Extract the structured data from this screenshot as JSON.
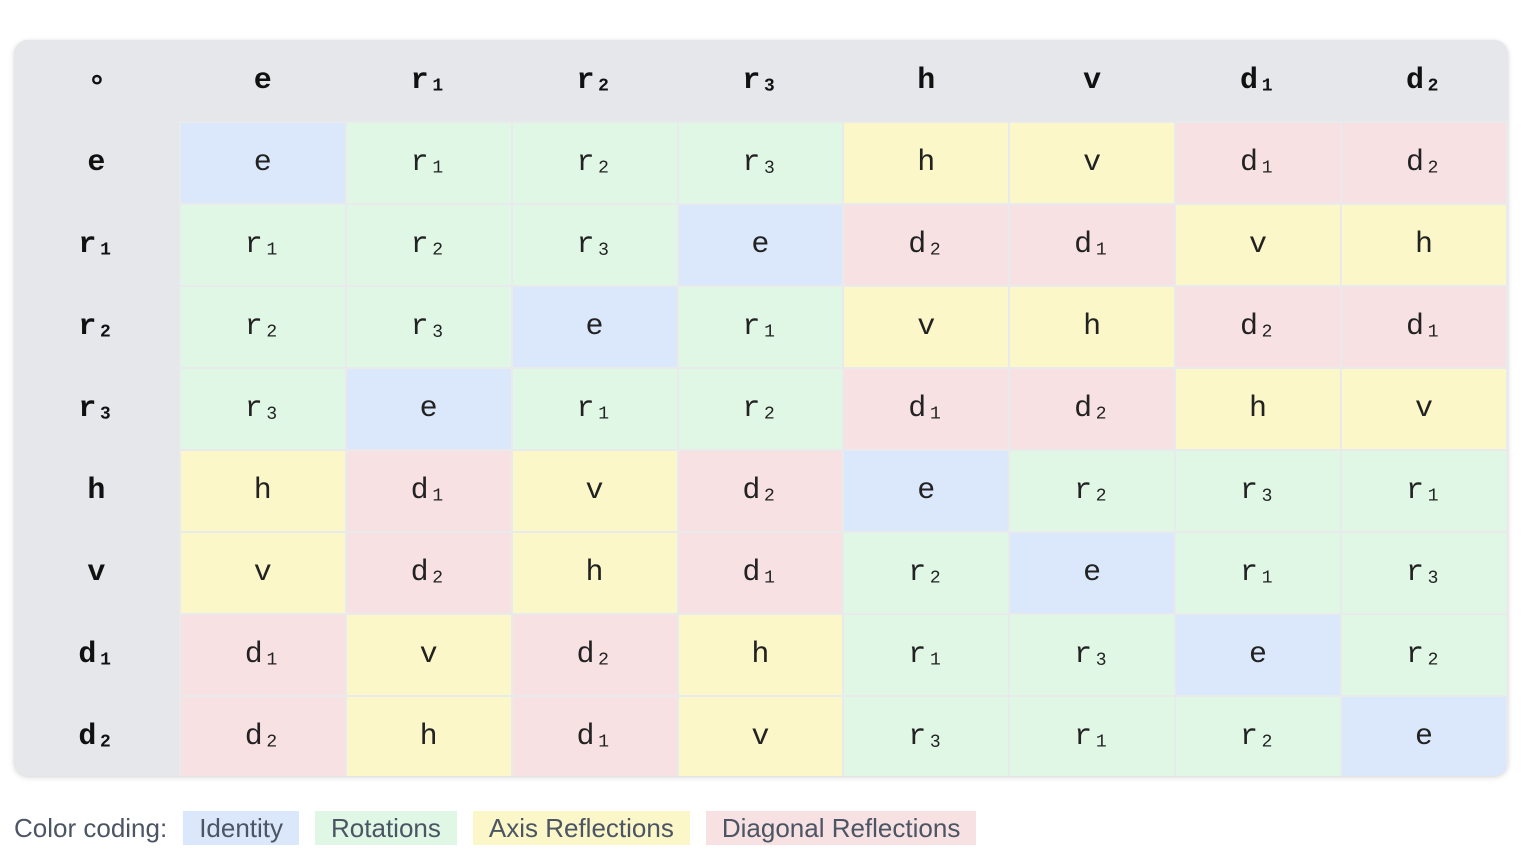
{
  "table": {
    "corner": "∘",
    "columns": [
      "e",
      "r₁",
      "r₂",
      "r₃",
      "h",
      "v",
      "d₁",
      "d₂"
    ],
    "rows": [
      {
        "label": "e",
        "cells": [
          "e",
          "r₁",
          "r₂",
          "r₃",
          "h",
          "v",
          "d₁",
          "d₂"
        ]
      },
      {
        "label": "r₁",
        "cells": [
          "r₁",
          "r₂",
          "r₃",
          "e",
          "d₂",
          "d₁",
          "v",
          "h"
        ]
      },
      {
        "label": "r₂",
        "cells": [
          "r₂",
          "r₃",
          "e",
          "r₁",
          "v",
          "h",
          "d₂",
          "d₁"
        ]
      },
      {
        "label": "r₃",
        "cells": [
          "r₃",
          "e",
          "r₁",
          "r₂",
          "d₁",
          "d₂",
          "h",
          "v"
        ]
      },
      {
        "label": "h",
        "cells": [
          "h",
          "d₁",
          "v",
          "d₂",
          "e",
          "r₂",
          "r₃",
          "r₁"
        ]
      },
      {
        "label": "v",
        "cells": [
          "v",
          "d₂",
          "h",
          "d₁",
          "r₂",
          "e",
          "r₁",
          "r₃"
        ]
      },
      {
        "label": "d₁",
        "cells": [
          "d₁",
          "v",
          "d₂",
          "h",
          "r₁",
          "r₃",
          "e",
          "r₂"
        ]
      },
      {
        "label": "d₂",
        "cells": [
          "d₂",
          "h",
          "d₁",
          "v",
          "r₃",
          "r₁",
          "r₂",
          "e"
        ]
      }
    ]
  },
  "legend": {
    "label": "Color coding:",
    "items": [
      {
        "key": "identity",
        "label": "Identity"
      },
      {
        "key": "rotations",
        "label": "Rotations"
      },
      {
        "key": "axis",
        "label": "Axis Reflections"
      },
      {
        "key": "diagonal",
        "label": "Diagonal Reflections"
      }
    ]
  },
  "colors": {
    "identity": "#dbe8fb",
    "rotations": "#e0f7e6",
    "axis": "#fbf7c8",
    "diagonal": "#f7e1e3",
    "header": "#e5e7eb"
  }
}
